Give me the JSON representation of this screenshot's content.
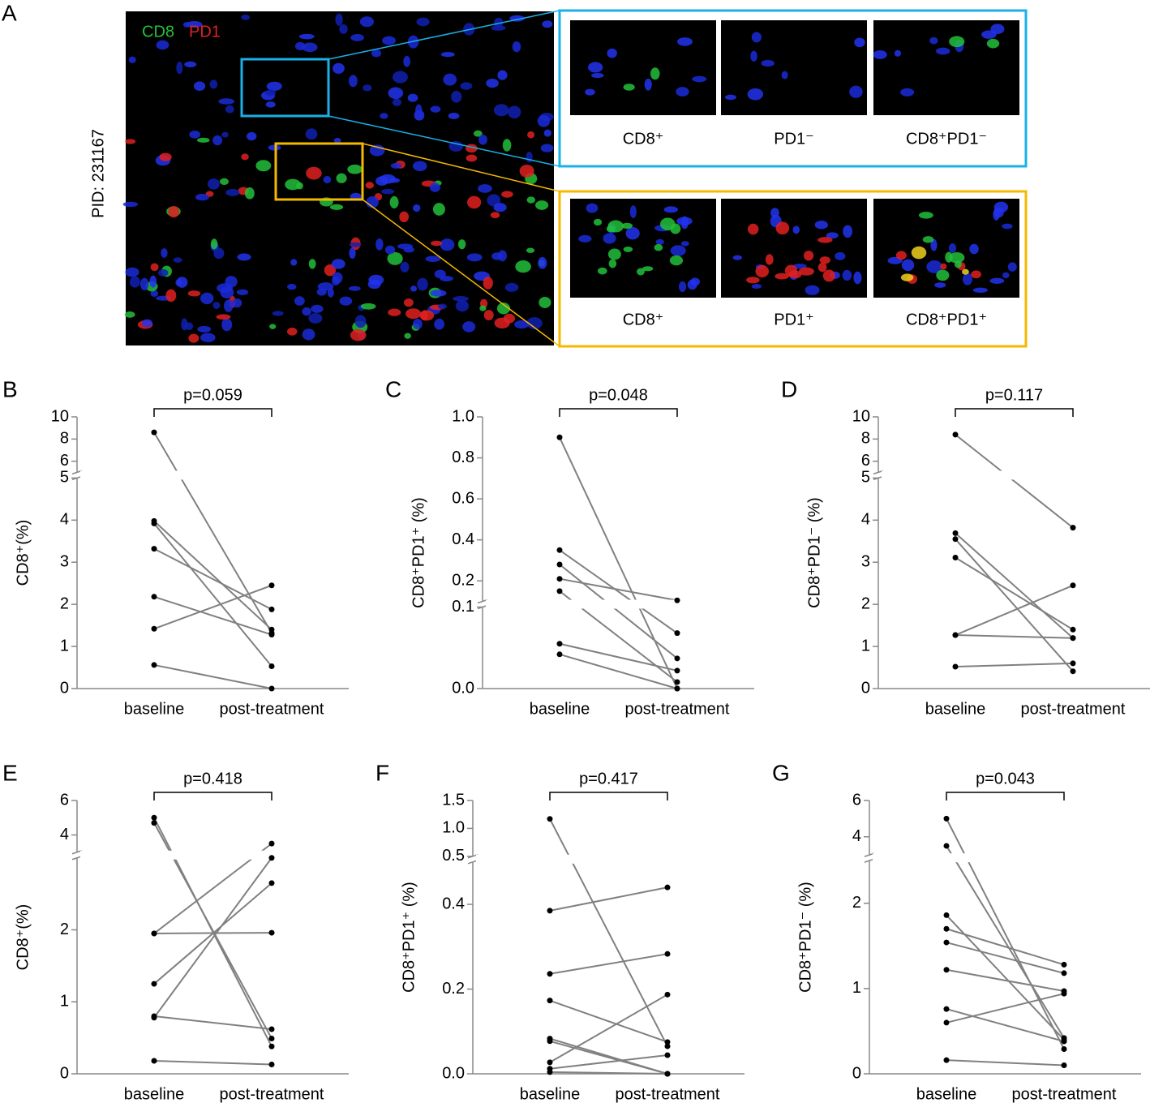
{
  "panel_a": {
    "label": "A",
    "stain_labels": [
      "CD8",
      "PD1"
    ],
    "patient_id": "PID: 231167",
    "insets": [
      {
        "labels": [
          "CD8⁺",
          "PD1⁻",
          "CD8⁺PD1⁻"
        ]
      },
      {
        "labels": [
          "CD8⁺",
          "PD1⁺",
          "CD8⁺PD1⁺"
        ]
      }
    ]
  },
  "chart_data": [
    {
      "type": "paired",
      "panel": "B",
      "annotation": "p=0.059",
      "y_label": "CD8⁺(%)",
      "categories": [
        "baseline",
        "post-treatment"
      ],
      "color": "#808080",
      "point_color": "#000000",
      "y_segments": [
        {
          "ylim": [
            0,
            5
          ],
          "yticks": [
            0,
            1,
            2,
            3,
            4,
            5
          ]
        },
        {
          "ylim": [
            5,
            10
          ],
          "yticks": [
            6,
            8,
            10
          ]
        }
      ],
      "series": [
        {
          "values": [
            8.6,
            1.32
          ]
        },
        {
          "values": [
            3.98,
            1.4
          ]
        },
        {
          "values": [
            3.92,
            0.53
          ]
        },
        {
          "values": [
            3.32,
            1.88
          ]
        },
        {
          "values": [
            2.18,
            1.28
          ]
        },
        {
          "values": [
            1.42,
            2.45
          ]
        },
        {
          "values": [
            0.56,
            0
          ]
        }
      ]
    },
    {
      "type": "paired",
      "panel": "C",
      "annotation": "p=0.048",
      "y_label": "CD8⁺PD1⁺ (%)",
      "categories": [
        "baseline",
        "post-treatment"
      ],
      "color": "#808080",
      "point_color": "#000000",
      "y_segments": [
        {
          "ylim": [
            0,
            0.1
          ],
          "yticks": [
            {
              "value": 0,
              "label": "0.0"
            },
            0.1
          ]
        },
        {
          "ylim": [
            0.1,
            1
          ],
          "yticks": [
            0.2,
            0.4,
            0.6,
            0.8,
            {
              "value": 1,
              "label": "1.0"
            }
          ]
        }
      ],
      "series": [
        {
          "values": [
            0.9,
            0
          ]
        },
        {
          "values": [
            0.35,
            0.068
          ]
        },
        {
          "values": [
            0.28,
            0.037
          ]
        },
        {
          "values": [
            0.21,
            0.105
          ]
        },
        {
          "values": [
            0.15,
            0.008
          ]
        },
        {
          "values": [
            0.055,
            0.022
          ]
        },
        {
          "values": [
            0.042,
            0
          ]
        }
      ]
    },
    {
      "type": "paired",
      "panel": "D",
      "annotation": "p=0.117",
      "y_label": "CD8⁺PD1⁻ (%)",
      "categories": [
        "baseline",
        "post-treatment"
      ],
      "color": "#808080",
      "point_color": "#000000",
      "y_segments": [
        {
          "ylim": [
            0,
            5
          ],
          "yticks": [
            0,
            1,
            2,
            3,
            4,
            5
          ]
        },
        {
          "ylim": [
            5,
            10
          ],
          "yticks": [
            6,
            8,
            10
          ]
        }
      ],
      "series": [
        {
          "values": [
            8.4,
            3.82
          ]
        },
        {
          "values": [
            3.69,
            1.2
          ]
        },
        {
          "values": [
            3.55,
            0.41
          ]
        },
        {
          "values": [
            3.11,
            1.4
          ]
        },
        {
          "values": [
            1.27,
            2.45
          ]
        },
        {
          "values": [
            1.27,
            1.2
          ]
        },
        {
          "values": [
            0.52,
            0.6
          ]
        }
      ]
    },
    {
      "type": "paired",
      "panel": "E",
      "annotation": "p=0.418",
      "y_label": "CD8⁺(%)",
      "categories": [
        "baseline",
        "post-treatment"
      ],
      "color": "#808080",
      "point_color": "#000000",
      "y_segments": [
        {
          "ylim": [
            0,
            3
          ],
          "yticks": [
            0,
            1,
            2
          ]
        },
        {
          "ylim": [
            3,
            6
          ],
          "yticks": [
            4,
            6
          ]
        }
      ],
      "series": [
        {
          "values": [
            5.0,
            0.38
          ]
        },
        {
          "values": [
            4.7,
            0.49
          ]
        },
        {
          "values": [
            1.95,
            3.5
          ]
        },
        {
          "values": [
            1.95,
            1.96
          ]
        },
        {
          "values": [
            1.25,
            2.65
          ]
        },
        {
          "values": [
            0.8,
            0.62
          ]
        },
        {
          "values": [
            0.78,
            3.0
          ]
        },
        {
          "values": [
            0.18,
            0.13
          ]
        }
      ]
    },
    {
      "type": "paired",
      "panel": "F",
      "annotation": "p=0.417",
      "y_label": "CD8⁺PD1⁺ (%)",
      "categories": [
        "baseline",
        "post-treatment"
      ],
      "color": "#808080",
      "point_color": "#000000",
      "y_segments": [
        {
          "ylim": [
            0,
            0.5
          ],
          "yticks": [
            {
              "value": 0,
              "label": "0.0"
            },
            0.2,
            0.4
          ]
        },
        {
          "ylim": [
            0.5,
            1.5
          ],
          "yticks": [
            0.5,
            {
              "value": 1,
              "label": "1.0"
            },
            1.5
          ]
        }
      ],
      "series": [
        {
          "values": [
            1.17,
            0.065
          ]
        },
        {
          "values": [
            0.385,
            0.44
          ]
        },
        {
          "values": [
            0.236,
            0.283
          ]
        },
        {
          "values": [
            0.173,
            0.075
          ]
        },
        {
          "values": [
            0.083,
            0
          ]
        },
        {
          "values": [
            0.077,
            0
          ]
        },
        {
          "values": [
            0.027,
            0.187
          ]
        },
        {
          "values": [
            0.012,
            0.044
          ]
        },
        {
          "values": [
            0.004,
            0
          ]
        }
      ]
    },
    {
      "type": "paired",
      "panel": "G",
      "annotation": "p=0.043",
      "y_label": "CD8⁺PD1⁻ (%)",
      "categories": [
        "baseline",
        "post-treatment"
      ],
      "color": "#808080",
      "point_color": "#000000",
      "y_segments": [
        {
          "ylim": [
            0,
            2.5
          ],
          "yticks": [
            0,
            1,
            2
          ]
        },
        {
          "ylim": [
            3,
            6
          ],
          "yticks": [
            4,
            6
          ]
        }
      ],
      "series": [
        {
          "values": [
            5.0,
            0.29
          ]
        },
        {
          "values": [
            3.5,
            0.42
          ]
        },
        {
          "values": [
            1.86,
            0.4
          ]
        },
        {
          "values": [
            1.7,
            1.28
          ]
        },
        {
          "values": [
            1.54,
            1.18
          ]
        },
        {
          "values": [
            1.22,
            0.97
          ]
        },
        {
          "values": [
            0.76,
            0.38
          ]
        },
        {
          "values": [
            0.6,
            0.94
          ]
        },
        {
          "values": [
            0.16,
            0.1
          ]
        }
      ]
    }
  ]
}
